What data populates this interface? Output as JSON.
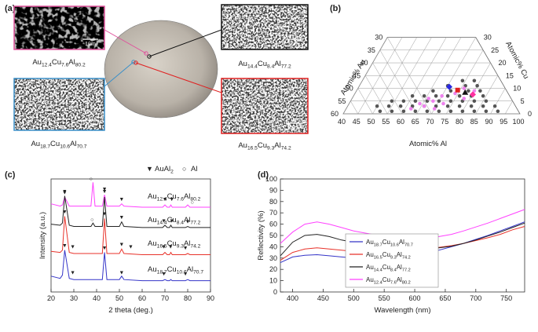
{
  "panel_labels": [
    "(a)",
    "(b)",
    "(c)",
    "(d)"
  ],
  "sem": {
    "images": [
      {
        "label": "Au12.4Cu7.6Al80.2",
        "scale": "1μm",
        "color": "#e0529c"
      },
      {
        "label": "Au14.4Cu8.4Al77.2",
        "scale": "1μm",
        "color": "#111111"
      },
      {
        "label": "Au18.7Cu10.6Al70.7",
        "scale": "1μm",
        "color": "#3a8fc8"
      },
      {
        "label": "Au16.5Cu9.3Al74.2",
        "scale": "1μm",
        "color": "#e02020"
      }
    ]
  },
  "chart_data": [
    {
      "type": "ternary",
      "axes": {
        "au": {
          "label": "Atomic% Au",
          "ticks": [
            30,
            35,
            40,
            45,
            50,
            55,
            60
          ]
        },
        "cu": {
          "label": "Atomic% Cu",
          "ticks": [
            0,
            5,
            10,
            15,
            20,
            25,
            30
          ]
        },
        "al": {
          "label": "Atomic% Al",
          "ticks": [
            40,
            45,
            50,
            55,
            60,
            65,
            70,
            75,
            80,
            85,
            90,
            95,
            100
          ]
        }
      },
      "grid": true,
      "series": [
        {
          "color": "#555555",
          "marker": "circle",
          "points": [
            [
              52,
              1
            ],
            [
              56,
              1
            ],
            [
              60,
              1
            ],
            [
              64,
              1
            ],
            [
              68,
              1
            ],
            [
              72,
              1
            ],
            [
              76,
              1
            ],
            [
              80,
              1
            ],
            [
              84,
              1
            ],
            [
              88,
              1
            ],
            [
              92,
              1
            ],
            [
              50,
              3
            ],
            [
              54,
              3
            ],
            [
              58,
              3
            ],
            [
              62,
              3
            ],
            [
              66,
              3
            ],
            [
              70,
              3
            ],
            [
              74,
              3
            ],
            [
              78,
              3
            ],
            [
              82,
              3
            ],
            [
              86,
              3
            ],
            [
              90,
              3
            ],
            [
              54,
              5
            ],
            [
              58,
              5
            ],
            [
              62,
              5
            ],
            [
              66,
              5
            ],
            [
              70,
              5
            ],
            [
              74,
              5
            ],
            [
              78,
              5
            ],
            [
              82,
              5
            ],
            [
              86,
              5
            ],
            [
              60,
              7
            ],
            [
              64,
              7
            ],
            [
              68,
              7
            ],
            [
              72,
              7
            ],
            [
              76,
              7
            ],
            [
              80,
              7
            ],
            [
              84,
              7
            ],
            [
              66,
              9
            ],
            [
              72,
              9
            ],
            [
              78,
              9
            ],
            [
              82,
              9
            ],
            [
              70,
              11
            ],
            [
              76,
              11
            ],
            [
              80,
              11
            ],
            [
              74,
              13
            ],
            [
              78,
              13
            ]
          ]
        },
        {
          "color": "#ee82ee",
          "marker": "circle",
          "points": [
            [
              62,
              2
            ],
            [
              64,
              4
            ],
            [
              66,
              3
            ],
            [
              68,
              5
            ],
            [
              70,
              2
            ],
            [
              66,
              6
            ],
            [
              70,
              7
            ],
            [
              72,
              4
            ],
            [
              74,
              8
            ],
            [
              76,
              10
            ],
            [
              80,
              9
            ],
            [
              78,
              6
            ]
          ]
        },
        {
          "color": "#2a2ae0",
          "marker": "diamond",
          "points": [
            [
              70.7,
              10.6
            ]
          ]
        },
        {
          "color": "#e02020",
          "marker": "square",
          "points": [
            [
              74.2,
              9.3
            ]
          ]
        },
        {
          "color": "#111111",
          "marker": "triangle",
          "points": [
            [
              77.2,
              8.4
            ]
          ]
        },
        {
          "color": "#ff2fa0",
          "marker": "diamond",
          "points": [
            [
              80.2,
              7.6
            ]
          ]
        }
      ]
    },
    {
      "type": "line",
      "xlabel": "2 theta (deg.)",
      "ylabel": "Intensity (a.u.)",
      "x": [
        20,
        24,
        25,
        26,
        28,
        30,
        37.5,
        38.4,
        39.3,
        42.5,
        43.5,
        44.5,
        50,
        51,
        52,
        60,
        69,
        70,
        71,
        72,
        72.6,
        73.2,
        79,
        80,
        81,
        90
      ],
      "xlim": [
        20,
        90
      ],
      "xticks": [
        20,
        30,
        40,
        50,
        60,
        70,
        80,
        90
      ],
      "ylim": [
        0,
        100
      ],
      "series": [
        {
          "name": "Au12.4Cu7.6Al80.2",
          "color": "#ff40ff",
          "values": [
            78,
            76,
            77,
            84,
            76,
            76,
            76,
            97,
            76,
            76,
            86,
            76,
            76,
            78,
            76,
            75,
            75,
            77,
            75,
            75,
            77,
            75,
            75,
            77,
            75,
            75
          ]
        },
        {
          "name": "Au14.4Cu8.4Al77.2",
          "color": "#222222",
          "values": [
            60,
            59,
            61,
            85,
            59,
            58,
            58,
            61,
            58,
            58,
            84,
            58,
            58,
            62,
            58,
            57,
            57,
            59,
            57,
            57,
            59,
            57,
            57,
            58,
            57,
            57
          ]
        },
        {
          "name": "Au16.5Cu9.3Al74.2",
          "color": "#e8322a",
          "values": [
            36,
            35,
            37,
            67,
            35,
            34,
            34,
            34,
            34,
            34,
            65,
            34,
            34,
            38,
            34,
            33,
            33,
            35,
            33,
            33,
            35,
            33,
            33,
            34,
            33,
            33
          ]
        },
        {
          "name": "Au18.7Cu10.6Al70.7",
          "color": "#3434c8",
          "values": [
            14,
            12,
            15,
            37,
            12,
            11,
            11,
            11,
            11,
            11,
            35,
            11,
            11,
            14,
            11,
            10,
            10,
            11,
            10,
            10,
            11,
            10,
            10,
            11,
            10,
            10
          ]
        }
      ],
      "legend": [
        {
          "symbol": "▼",
          "label": "AuAl2"
        },
        {
          "symbol": "○",
          "label": "Al"
        }
      ],
      "markers": [
        {
          "symbol": "▼",
          "x": 26,
          "y": 88
        },
        {
          "symbol": "○",
          "x": 37.5,
          "y": 100
        },
        {
          "symbol": "▼",
          "x": 43.5,
          "y": 91
        },
        {
          "symbol": "▼",
          "x": 51,
          "y": 82
        },
        {
          "symbol": "▼",
          "x": 70,
          "y": 82
        },
        {
          "symbol": "▼",
          "x": 73,
          "y": 82
        },
        {
          "symbol": "○",
          "x": 82,
          "y": 79
        },
        {
          "symbol": "▼",
          "x": 26,
          "y": 89
        },
        {
          "symbol": "○",
          "x": 38,
          "y": 64
        },
        {
          "symbol": "▼",
          "x": 43.5,
          "y": 89
        },
        {
          "symbol": "▼",
          "x": 51,
          "y": 66
        },
        {
          "symbol": "▼",
          "x": 69.5,
          "y": 63
        },
        {
          "symbol": "▼",
          "x": 73,
          "y": 63
        },
        {
          "symbol": "▼",
          "x": 80,
          "y": 62
        },
        {
          "symbol": "▼",
          "x": 26,
          "y": 71
        },
        {
          "symbol": "▼",
          "x": 29.5,
          "y": 40
        },
        {
          "symbol": "▼",
          "x": 43.5,
          "y": 69
        },
        {
          "symbol": "▼",
          "x": 51,
          "y": 42
        },
        {
          "symbol": "▼",
          "x": 55,
          "y": 40
        },
        {
          "symbol": "▼",
          "x": 69.5,
          "y": 40
        },
        {
          "symbol": "▼",
          "x": 72.5,
          "y": 40
        },
        {
          "symbol": "▼",
          "x": 79,
          "y": 39
        },
        {
          "symbol": "▼",
          "x": 26,
          "y": 41
        },
        {
          "symbol": "▼",
          "x": 29.5,
          "y": 17
        },
        {
          "symbol": "▼",
          "x": 43.5,
          "y": 39
        },
        {
          "symbol": "▼",
          "x": 51,
          "y": 17
        },
        {
          "symbol": "▼",
          "x": 69.5,
          "y": 16
        },
        {
          "symbol": "▼",
          "x": 79,
          "y": 16
        }
      ]
    },
    {
      "type": "line",
      "xlabel": "Wavelength (nm)",
      "ylabel": "Reflectivity (%)",
      "x": [
        380,
        400,
        420,
        440,
        460,
        480,
        500,
        520,
        540,
        560,
        580,
        600,
        620,
        640,
        660,
        680,
        700,
        720,
        740,
        760,
        780
      ],
      "xlim": [
        380,
        780
      ],
      "xticks": [
        400,
        450,
        500,
        550,
        600,
        650,
        700,
        750
      ],
      "ylim": [
        0,
        100
      ],
      "yticks": [
        0,
        10,
        20,
        30,
        40,
        50,
        60,
        70,
        80,
        90,
        100
      ],
      "series": [
        {
          "name": "Au18.7Cu10.6Al70.7",
          "color": "#3434c8",
          "values": [
            26,
            31,
            32.5,
            33,
            32,
            31,
            30,
            29.5,
            29.5,
            30,
            31,
            32.5,
            34.5,
            37,
            40,
            43,
            46.5,
            50,
            54,
            58,
            62
          ]
        },
        {
          "name": "Au16.5Cu9.3Al74.2",
          "color": "#e8322a",
          "values": [
            28,
            35,
            38,
            39,
            38,
            37,
            36,
            36,
            36,
            36,
            36.5,
            37,
            38,
            39.5,
            41,
            43,
            45.5,
            48,
            51,
            55,
            58
          ]
        },
        {
          "name": "Au14.4Cu8.4Al77.2",
          "color": "#222222",
          "values": [
            32,
            44,
            50,
            51,
            49,
            46,
            44,
            42,
            41,
            40,
            39,
            38.5,
            38.5,
            39,
            40.5,
            43,
            46,
            49.5,
            53,
            57,
            61
          ]
        },
        {
          "name": "Au12.4Cu7.6Al80.2",
          "color": "#ff40ff",
          "values": [
            43,
            53,
            60,
            62,
            60,
            57,
            54,
            52,
            50,
            48.5,
            47.5,
            47,
            47.5,
            49,
            51,
            54,
            57.5,
            61,
            65,
            69,
            73
          ]
        }
      ]
    }
  ]
}
